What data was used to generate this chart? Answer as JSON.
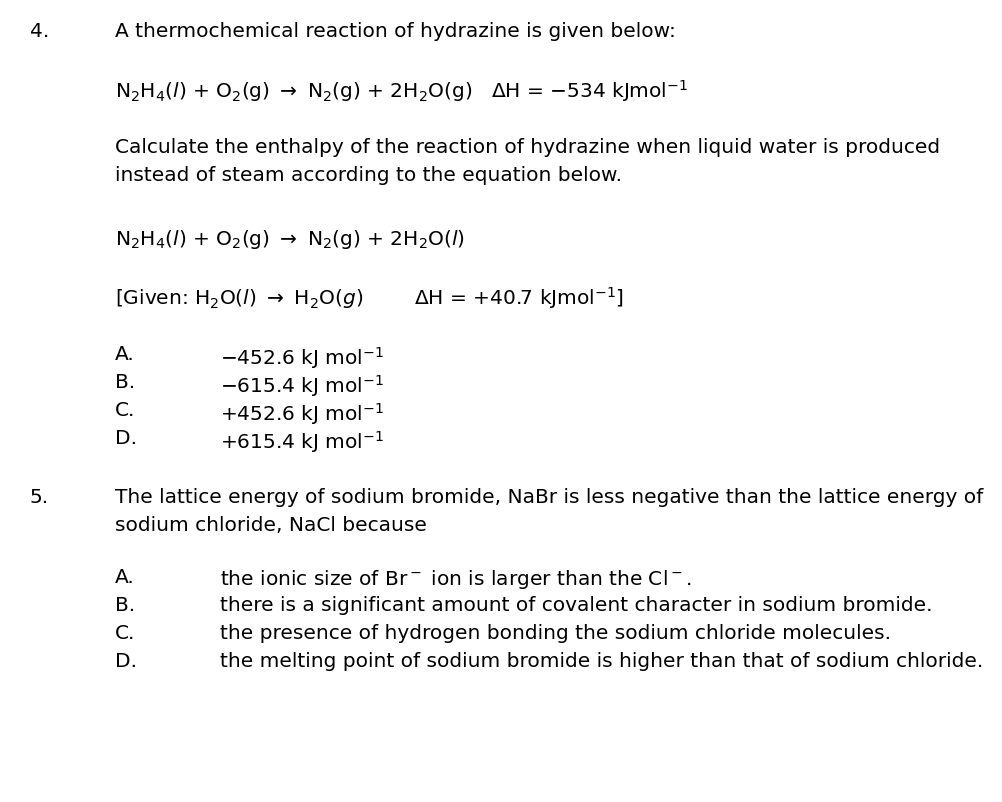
{
  "bg_color": "#ffffff",
  "text_color": "#000000",
  "q4_number": "4.",
  "q5_number": "5.",
  "q4_intro": "A thermochemical reaction of hydrazine is given below:",
  "q4_calc_text1": "Calculate the enthalpy of the reaction of hydrazine when liquid water is produced",
  "q4_calc_text2": "instead of steam according to the equation below.",
  "q5_intro1": "The lattice energy of sodium bromide, NaBr is less negative than the lattice energy of",
  "q5_intro2": "sodium chloride, NaCl because",
  "q5_optA": "the ionic size of Br⁻ ion is larger than the Cl⁻.",
  "q5_optB": "there is a significant amount of covalent character in sodium bromide.",
  "q5_optC": "the presence of hydrogen bonding the sodium chloride molecules.",
  "q5_optD": "the melting point of sodium bromide is higher than that of sodium chloride.",
  "opt4A_val": "–452.6 kJ mol⁻¹",
  "opt4B_val": "–615.4 kJ mol⁻¹",
  "opt4C_val": "+452.6 kJ mol⁻¹",
  "opt4D_val": "+615.4 kJ mol⁻¹",
  "figsize": [
    10.03,
    8.03
  ],
  "dpi": 100
}
